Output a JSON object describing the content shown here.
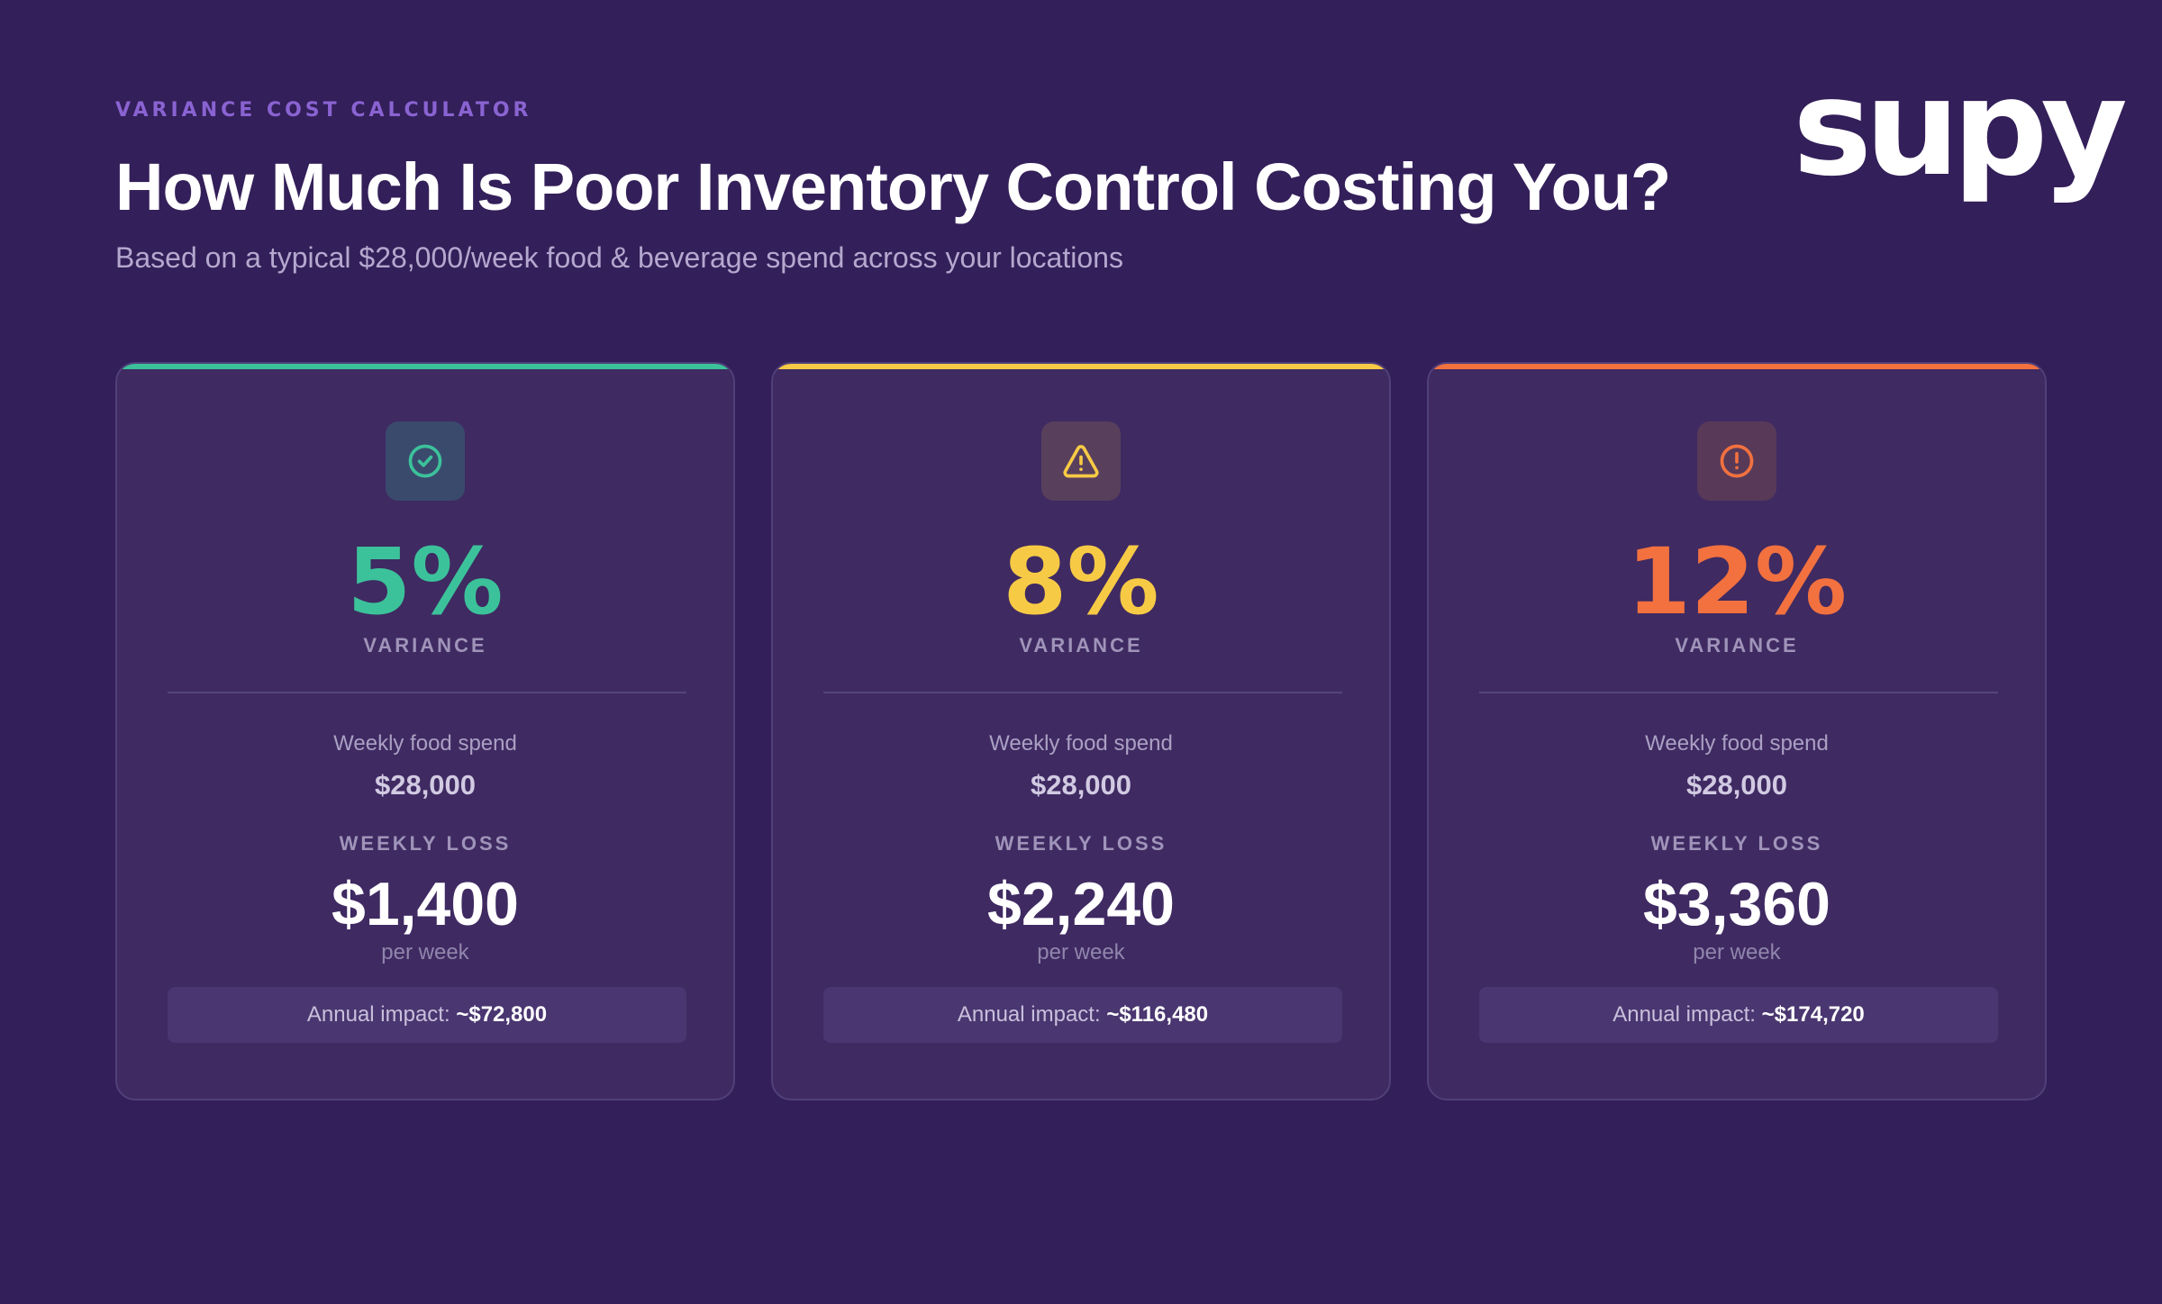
{
  "header": {
    "eyebrow": "VARIANCE COST CALCULATOR",
    "title": "How Much Is Poor Inventory Control Costing You?",
    "subtitle": "Based on a typical $28,000/week food & beverage spend across your locations"
  },
  "brand": {
    "logo_text": "supy"
  },
  "colors": {
    "background": "#331f59",
    "green": "#3cc29a",
    "yellow": "#f7ca45",
    "orange": "#f2713f"
  },
  "cards": [
    {
      "icon": "check-circle-icon",
      "accent": "#3cc29a",
      "icon_bg": "#3a4a6d",
      "percent": "5%",
      "percent_label": "VARIANCE",
      "spend_label": "Weekly food spend",
      "spend_value": "$28,000",
      "loss_label": "WEEKLY LOSS",
      "loss_value": "$1,400",
      "per_week": "per week",
      "annual_label": "Annual impact: ",
      "annual_value": "~$72,800"
    },
    {
      "icon": "warning-triangle-icon",
      "accent": "#f7ca45",
      "icon_bg": "#58405d",
      "percent": "8%",
      "percent_label": "VARIANCE",
      "spend_label": "Weekly food spend",
      "spend_value": "$28,000",
      "loss_label": "WEEKLY LOSS",
      "loss_value": "$2,240",
      "per_week": "per week",
      "annual_label": "Annual impact: ",
      "annual_value": "~$116,480"
    },
    {
      "icon": "alert-circle-icon",
      "accent": "#f2713f",
      "icon_bg": "#583a58",
      "percent": "12%",
      "percent_label": "VARIANCE",
      "spend_label": "Weekly food spend",
      "spend_value": "$28,000",
      "loss_label": "WEEKLY LOSS",
      "loss_value": "$3,360",
      "per_week": "per week",
      "annual_label": "Annual impact: ",
      "annual_value": "~$174,720"
    }
  ]
}
